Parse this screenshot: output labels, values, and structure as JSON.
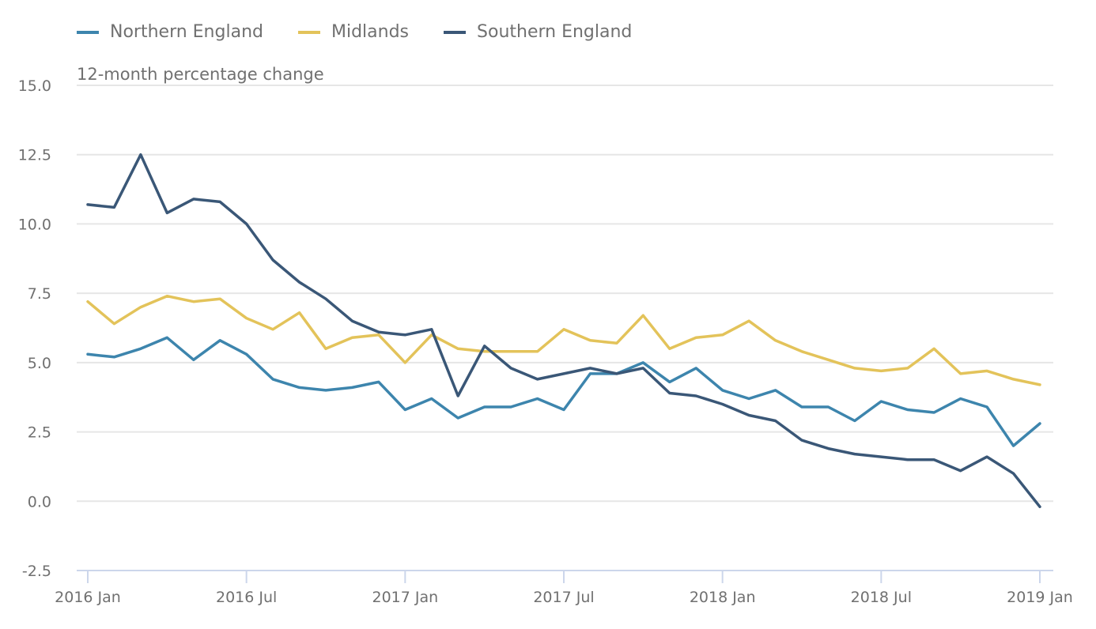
{
  "chart_data": {
    "type": "line",
    "title": "",
    "ylabel": "12-month percentage change",
    "xlabel": "",
    "ylim": [
      -2.5,
      15.0
    ],
    "yticks": [
      -2.5,
      0.0,
      2.5,
      5.0,
      7.5,
      10.0,
      12.5,
      15.0
    ],
    "ytick_labels": [
      "-2.5",
      "0.0",
      "2.5",
      "5.0",
      "7.5",
      "10.0",
      "12.5",
      "15.0"
    ],
    "x_start": "2016 Jan",
    "x_end": "2019 Jan",
    "frequency": "monthly",
    "xticks": [
      {
        "label": "2016 Jan",
        "index": 0
      },
      {
        "label": "2016 Jul",
        "index": 6
      },
      {
        "label": "2017 Jan",
        "index": 12
      },
      {
        "label": "2017 Jul",
        "index": 18
      },
      {
        "label": "2018 Jan",
        "index": 24
      },
      {
        "label": "2018 Jul",
        "index": 30
      },
      {
        "label": "2019 Jan",
        "index": 36
      }
    ],
    "grid": true,
    "legend": "top-left",
    "series": [
      {
        "name": "Northern England",
        "color": "#3d85ad",
        "values": [
          5.3,
          5.2,
          5.5,
          5.9,
          5.1,
          5.8,
          5.3,
          4.4,
          4.1,
          4.0,
          4.1,
          4.3,
          3.3,
          3.7,
          3.0,
          3.4,
          3.4,
          3.7,
          3.3,
          4.6,
          4.6,
          5.0,
          4.3,
          4.8,
          4.0,
          3.7,
          4.0,
          3.4,
          3.4,
          2.9,
          3.6,
          3.3,
          3.2,
          3.7,
          3.4,
          2.0,
          2.8
        ]
      },
      {
        "name": "Midlands",
        "color": "#e3c35a",
        "values": [
          7.2,
          6.4,
          7.0,
          7.4,
          7.2,
          7.3,
          6.6,
          6.2,
          6.8,
          5.5,
          5.9,
          6.0,
          5.0,
          6.0,
          5.5,
          5.4,
          5.4,
          5.4,
          6.2,
          5.8,
          5.7,
          6.7,
          5.5,
          5.9,
          6.0,
          6.5,
          5.8,
          5.4,
          5.1,
          4.8,
          4.7,
          4.8,
          5.5,
          4.6,
          4.7,
          4.4,
          4.2
        ]
      },
      {
        "name": "Southern England",
        "color": "#3a5777",
        "values": [
          10.7,
          10.6,
          12.5,
          10.4,
          10.9,
          10.8,
          10.0,
          8.7,
          7.9,
          7.3,
          6.5,
          6.1,
          6.0,
          6.2,
          3.8,
          5.6,
          4.8,
          4.4,
          4.6,
          4.8,
          4.6,
          4.8,
          3.9,
          3.8,
          3.5,
          3.1,
          2.9,
          2.2,
          1.9,
          1.7,
          1.6,
          1.5,
          1.5,
          1.1,
          1.6,
          1.0,
          -0.2
        ]
      }
    ]
  }
}
